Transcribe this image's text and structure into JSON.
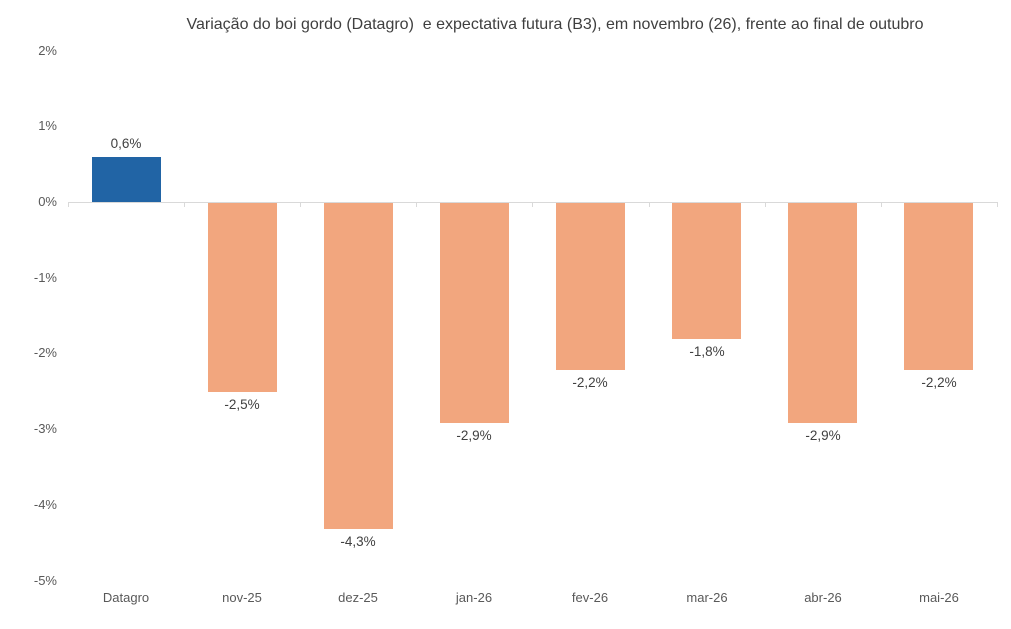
{
  "chart_data": {
    "type": "bar",
    "title": "Variação do boi gordo (Datagro)  e expectativa futura (B3), em novembro (26), frente ao final de outubro",
    "categories": [
      "Datagro",
      "nov-25",
      "dez-25",
      "jan-26",
      "fev-26",
      "mar-26",
      "abr-26",
      "mai-26"
    ],
    "values": [
      0.6,
      -2.5,
      -4.3,
      -2.9,
      -2.2,
      -1.8,
      -2.9,
      -2.2
    ],
    "value_labels": [
      "0,6%",
      "-2,5%",
      "-4,3%",
      "-2,9%",
      "-2,2%",
      "-1,8%",
      "-2,9%",
      "-2,2%"
    ],
    "y_ticks": [
      "2%",
      "1%",
      "0%",
      "-1%",
      "-2%",
      "-3%",
      "-4%",
      "-5%"
    ],
    "y_tick_values": [
      2,
      1,
      0,
      -1,
      -2,
      -3,
      -4,
      -5
    ],
    "ylim": [
      -5,
      2
    ],
    "xlabel": "",
    "ylabel": "",
    "grid": false,
    "legend": "none",
    "colors": {
      "datagro_bar": "#2164A5",
      "future_bar": "#F2A67E",
      "axis_line": "#D9D9D9",
      "axis_text": "#595959",
      "data_label_text": "#404040",
      "title_text": "#3F3F3F",
      "background": "#FFFFFF"
    }
  }
}
